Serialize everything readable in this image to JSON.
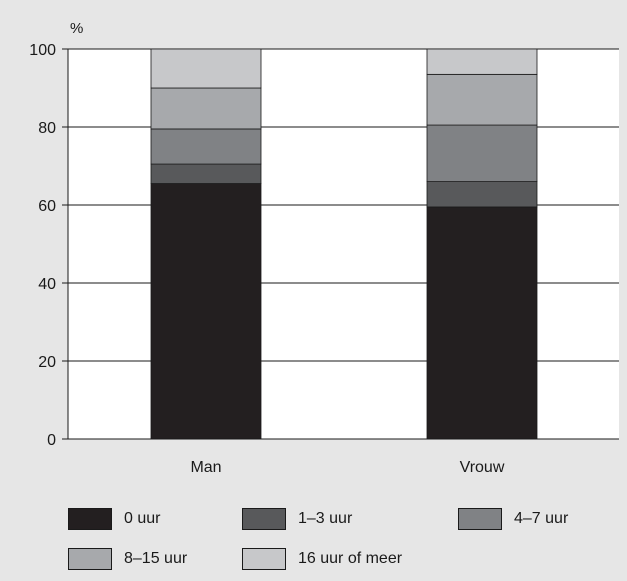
{
  "chart_data": {
    "type": "bar",
    "stacked": true,
    "title": "",
    "unit_label": "%",
    "categories": [
      "Man",
      "Vrouw"
    ],
    "y_ticks": [
      "0",
      "20",
      "40",
      "60",
      "80",
      "100"
    ],
    "ylim": [
      0,
      100
    ],
    "grid": true,
    "legend_position": "bottom",
    "series": [
      {
        "name": "0 uur",
        "values": [
          65.5,
          59.5
        ],
        "color": "#231f20"
      },
      {
        "name": "1–3 uur",
        "values": [
          5.0,
          6.5
        ],
        "color": "#58595b"
      },
      {
        "name": "4–7 uur",
        "values": [
          9.0,
          14.5
        ],
        "color": "#808285"
      },
      {
        "name": "8–15 uur",
        "values": [
          10.5,
          13.0
        ],
        "color": "#a7a9ac"
      },
      {
        "name": "16 uur of meer",
        "values": [
          10.0,
          6.5
        ],
        "color": "#c7c8ca"
      }
    ]
  },
  "colors": {
    "background": "#e6e6e6",
    "plot_background": "#ffffff",
    "axis": "#1a1a1a"
  }
}
